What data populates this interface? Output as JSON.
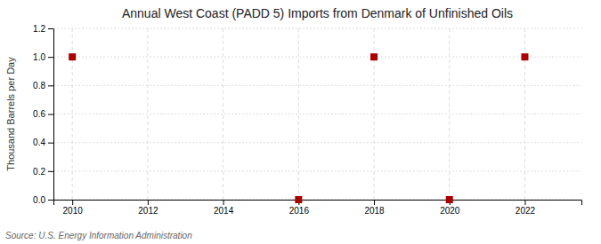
{
  "chart_data": {
    "type": "scatter",
    "title": "Annual West Coast (PADD 5) Imports from Denmark of Unfinished Oils",
    "ylabel": "Thousand Barrels per Day",
    "source": "Source: U.S. Energy Information Administration",
    "x": [
      2010,
      2016,
      2018,
      2020,
      2022
    ],
    "values": [
      1.0,
      0.0,
      1.0,
      0.0,
      1.0
    ],
    "color": "#aa0000",
    "marker": "square",
    "xlim": [
      2009.5,
      2023.5
    ],
    "ylim": [
      0.0,
      1.2
    ],
    "xticks": [
      2010,
      2012,
      2014,
      2016,
      2018,
      2020,
      2022
    ],
    "yticks": [
      {
        "value": 0.0,
        "label": "0.0"
      },
      0.2,
      0.4,
      0.6,
      0.8,
      {
        "value": 1.0,
        "label": "1.0"
      },
      1.2
    ],
    "grid": true
  }
}
